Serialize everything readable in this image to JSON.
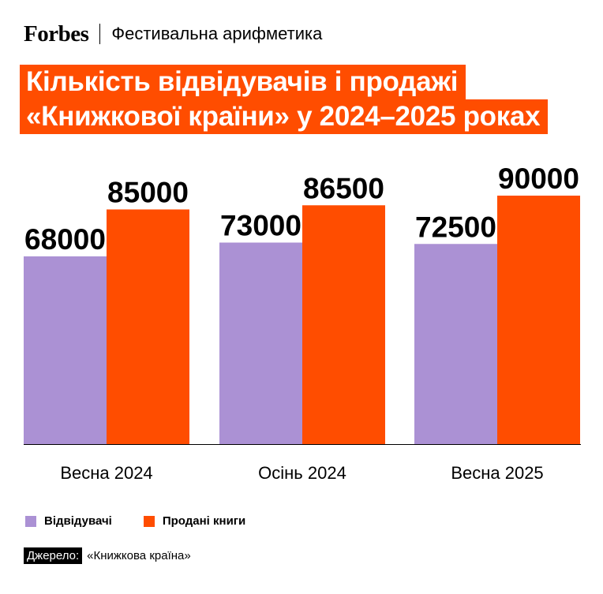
{
  "header": {
    "logo": "Forbes",
    "section": "Фестивальна арифметика"
  },
  "title_lines": [
    "Кількість відвідувачів і продажі",
    "«Книжкової країни» у 2024–2025 роках"
  ],
  "colors": {
    "visitors": "#ab91d4",
    "books": "#ff4d00",
    "accent": "#ff4d00"
  },
  "chart_data": {
    "type": "bar",
    "categories": [
      "Весна 2024",
      "Осінь 2024",
      "Весна 2025"
    ],
    "series": [
      {
        "name": "Відвідувачі",
        "values": [
          68000,
          73000,
          72500
        ]
      },
      {
        "name": "Продані книги",
        "values": [
          85000,
          86500,
          90000
        ]
      }
    ],
    "ylim": [
      0,
      100000
    ],
    "grid": false,
    "legend": "bottom-left",
    "data_labels": true
  },
  "legend": {
    "items": [
      "Відвідувачі",
      "Продані книги"
    ]
  },
  "source": {
    "label": "Джерело:",
    "text": "«Книжкова країна»"
  }
}
